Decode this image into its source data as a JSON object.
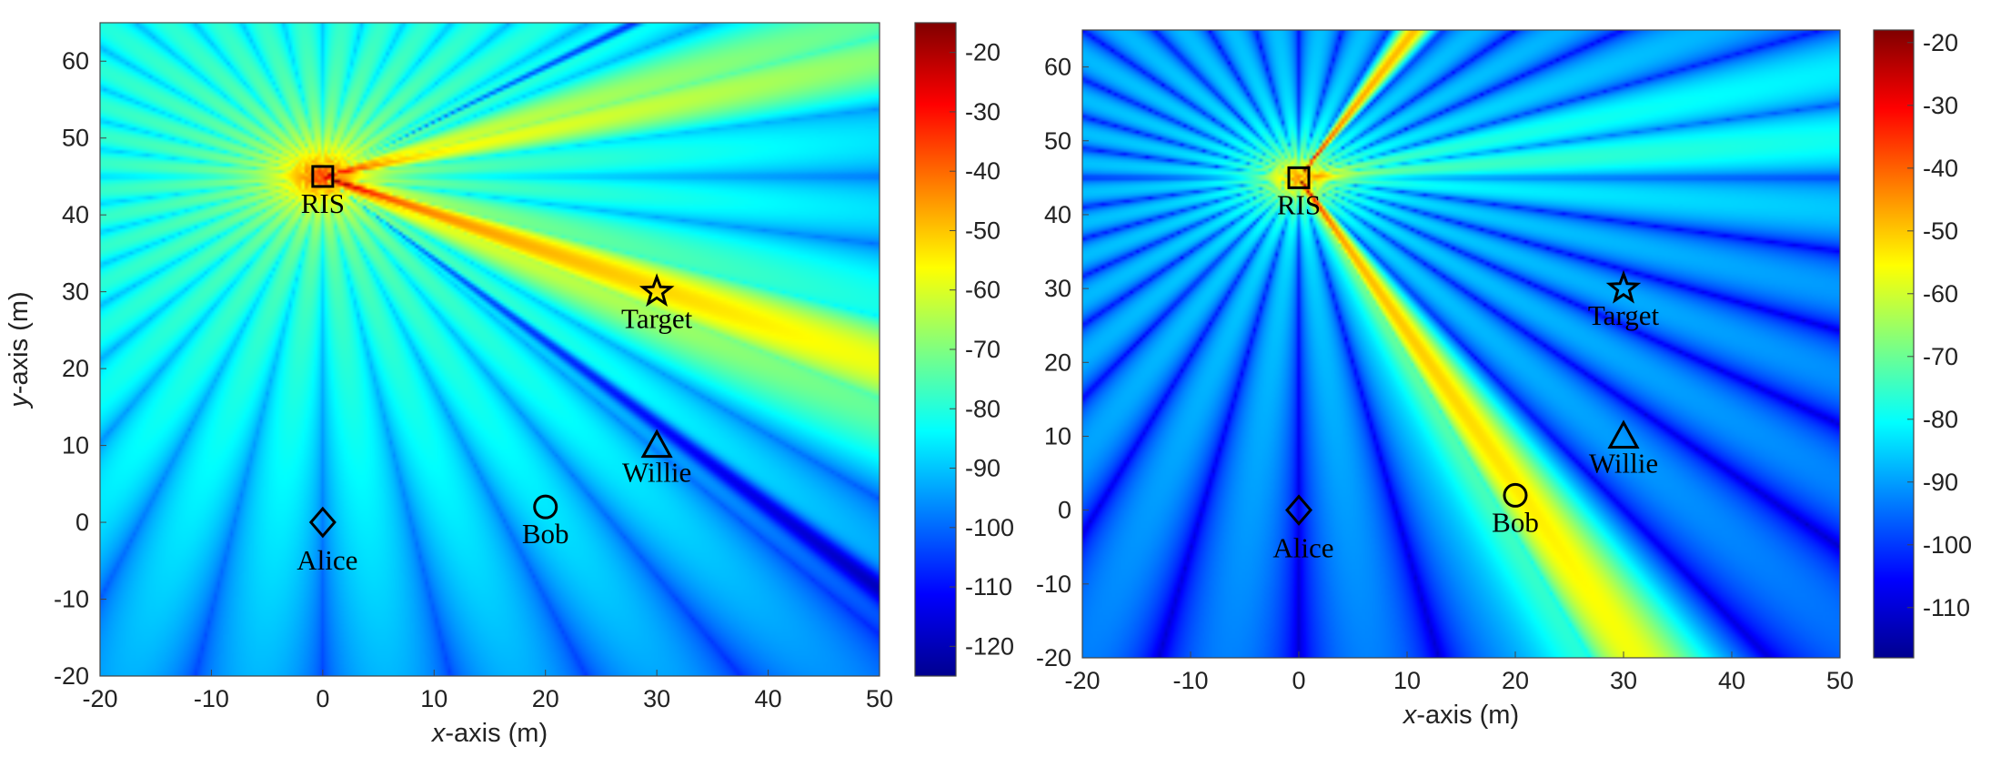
{
  "chart_data": [
    {
      "type": "heatmap",
      "panel": "left",
      "xlabel_italic": "x",
      "xlabel_rest": "-axis (m)",
      "ylabel_italic": "y",
      "ylabel_rest": "-axis (m)",
      "xlim": [
        -20,
        50
      ],
      "ylim": [
        -20,
        65
      ],
      "xticks": [
        -20,
        -10,
        0,
        10,
        20,
        30,
        40,
        50
      ],
      "yticks": [
        -20,
        -10,
        0,
        10,
        20,
        30,
        40,
        50,
        60
      ],
      "colorbar": {
        "range": [
          -125,
          -15
        ],
        "ticks": [
          -120,
          -110,
          -100,
          -90,
          -80,
          -70,
          -60,
          -50,
          -40,
          -30,
          -20
        ]
      },
      "beams_toward": "Target",
      "markers": [
        {
          "label": "RIS",
          "symbol": "square",
          "x": 0,
          "y": 45
        },
        {
          "label": "Target",
          "symbol": "star",
          "x": 30,
          "y": 30
        },
        {
          "label": "Willie",
          "symbol": "triangle",
          "x": 30,
          "y": 10
        },
        {
          "label": "Alice",
          "symbol": "diamond",
          "x": 0,
          "y": 0
        },
        {
          "label": "Bob",
          "symbol": "circle",
          "x": 20,
          "y": 2
        }
      ]
    },
    {
      "type": "heatmap",
      "panel": "right",
      "xlabel_italic": "x",
      "xlabel_rest": "-axis (m)",
      "ylabel_italic": "",
      "ylabel_rest": "",
      "xlim": [
        -20,
        50
      ],
      "ylim": [
        -20,
        65
      ],
      "xticks": [
        -20,
        -10,
        0,
        10,
        20,
        30,
        40,
        50
      ],
      "yticks": [
        -20,
        -10,
        0,
        10,
        20,
        30,
        40,
        50,
        60
      ],
      "colorbar": {
        "range": [
          -118,
          -18
        ],
        "ticks": [
          -110,
          -100,
          -90,
          -80,
          -70,
          -60,
          -50,
          -40,
          -30,
          -20
        ]
      },
      "beams_toward": "Bob",
      "markers": [
        {
          "label": "RIS",
          "symbol": "square",
          "x": 0,
          "y": 45
        },
        {
          "label": "Target",
          "symbol": "star",
          "x": 30,
          "y": 30
        },
        {
          "label": "Willie",
          "symbol": "triangle",
          "x": 30,
          "y": 10
        },
        {
          "label": "Alice",
          "symbol": "diamond",
          "x": 0,
          "y": 0
        },
        {
          "label": "Bob",
          "symbol": "circle",
          "x": 20,
          "y": 2
        }
      ]
    }
  ]
}
